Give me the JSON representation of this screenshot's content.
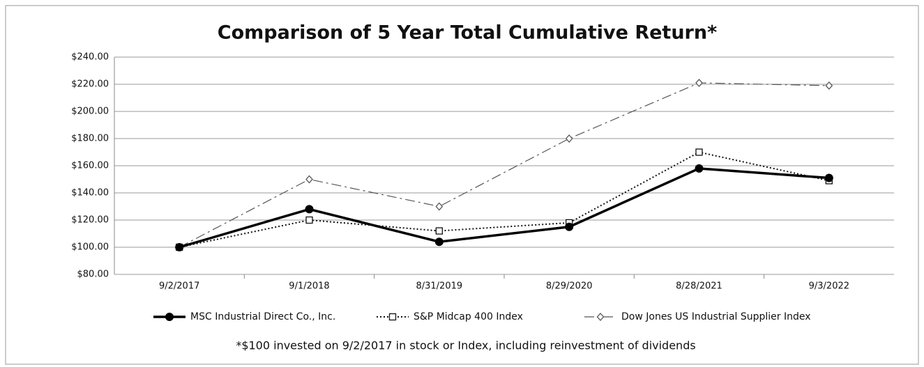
{
  "chart_data": {
    "type": "line",
    "title": "Comparison of 5 Year Total Cumulative Return*",
    "footnote": "*$100 invested on 9/2/2017 in stock or Index, including reinvestment of dividends",
    "categories": [
      "9/2/2017",
      "9/1/2018",
      "8/31/2019",
      "8/29/2020",
      "8/28/2021",
      "9/3/2022"
    ],
    "series": [
      {
        "name": "MSC Industrial Direct Co., Inc.",
        "color": "#000000",
        "line_style": "solid",
        "marker": "circle",
        "values": [
          100,
          128,
          104,
          115,
          158,
          151
        ]
      },
      {
        "name": "S&P Midcap 400 Index",
        "color": "#111111",
        "line_style": "dotted",
        "marker": "square",
        "values": [
          100,
          120,
          112,
          118,
          170,
          149
        ]
      },
      {
        "name": "Dow Jones US Industrial Supplier Index",
        "color": "#555555",
        "line_style": "dashdot",
        "marker": "diamond",
        "values": [
          100,
          150,
          130,
          180,
          221,
          219
        ]
      }
    ],
    "ylim": [
      80,
      240
    ],
    "yticks": [
      {
        "value": 80,
        "label": "$80.00"
      },
      {
        "value": 100,
        "label": "$100.00"
      },
      {
        "value": 120,
        "label": "$120.00"
      },
      {
        "value": 140,
        "label": "$140.00"
      },
      {
        "value": 160,
        "label": "$160.00"
      },
      {
        "value": 180,
        "label": "$180.00"
      },
      {
        "value": 200,
        "label": "$200.00"
      },
      {
        "value": 220,
        "label": "$220.00"
      },
      {
        "value": 240,
        "label": "$240.00"
      }
    ],
    "grid": true,
    "legend": "bottom"
  }
}
